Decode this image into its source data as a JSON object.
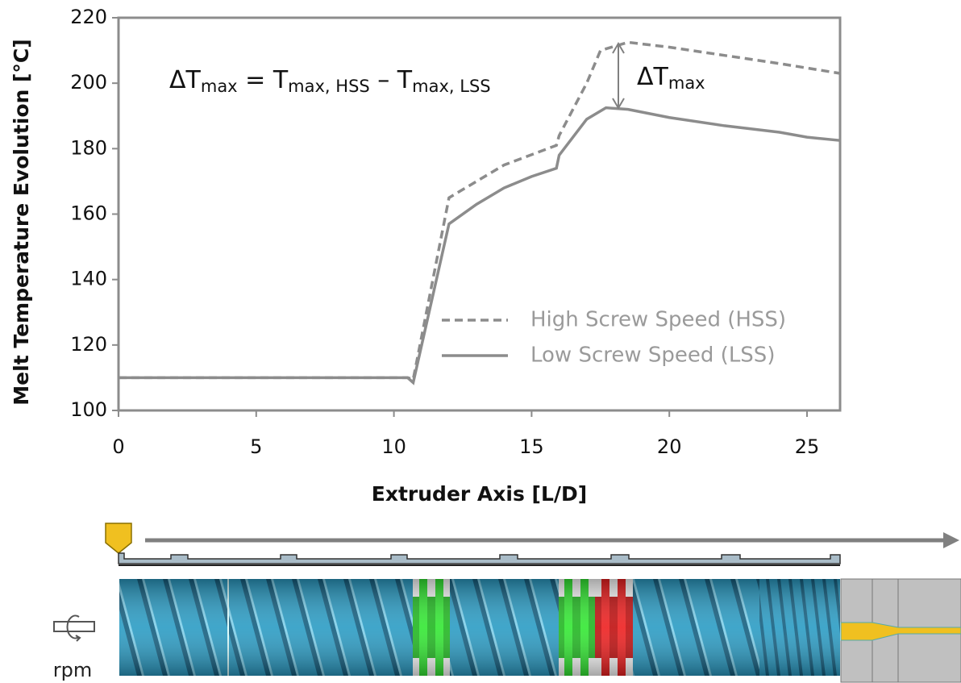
{
  "chart_data": {
    "type": "line",
    "x_label": "Extruder Axis [L/D]",
    "y_label": "Melt Temperature Evolution [°C]",
    "xlim": [
      0,
      26.2
    ],
    "ylim": [
      100,
      220
    ],
    "xticks": [
      0,
      5,
      10,
      15,
      20,
      25
    ],
    "yticks": [
      100,
      120,
      140,
      160,
      180,
      200,
      220
    ],
    "legend": "right",
    "series": [
      {
        "name": "High Screw Speed (HSS)",
        "color": "#8c8c8c",
        "dash": true,
        "x": [
          0,
          10.5,
          10.7,
          12,
          14,
          15.9,
          16,
          17,
          17.5,
          18.5,
          20,
          22,
          24,
          26.2
        ],
        "values": [
          110,
          110,
          109.5,
          165,
          175,
          181,
          184,
          200,
          210,
          212.5,
          211,
          208.5,
          206,
          203
        ]
      },
      {
        "name": "Low Screw Speed (LSS)",
        "color": "#8c8c8c",
        "dash": false,
        "x": [
          0,
          10.5,
          10.7,
          12,
          13,
          14,
          15,
          15.9,
          16,
          17,
          17.7,
          18.5,
          20,
          22,
          24,
          25,
          26.2
        ],
        "values": [
          110,
          110,
          108.5,
          157,
          163,
          168,
          171.5,
          174,
          178,
          189,
          192.5,
          192,
          189.5,
          187,
          185,
          183.5,
          182.5
        ]
      }
    ],
    "annotations": {
      "formula": [
        "ΔT",
        "max",
        " = T",
        "max, HSS",
        " – T",
        "max, LSS"
      ],
      "delta": [
        "ΔT",
        "max"
      ]
    }
  },
  "diagram": {
    "label": "rpm"
  }
}
